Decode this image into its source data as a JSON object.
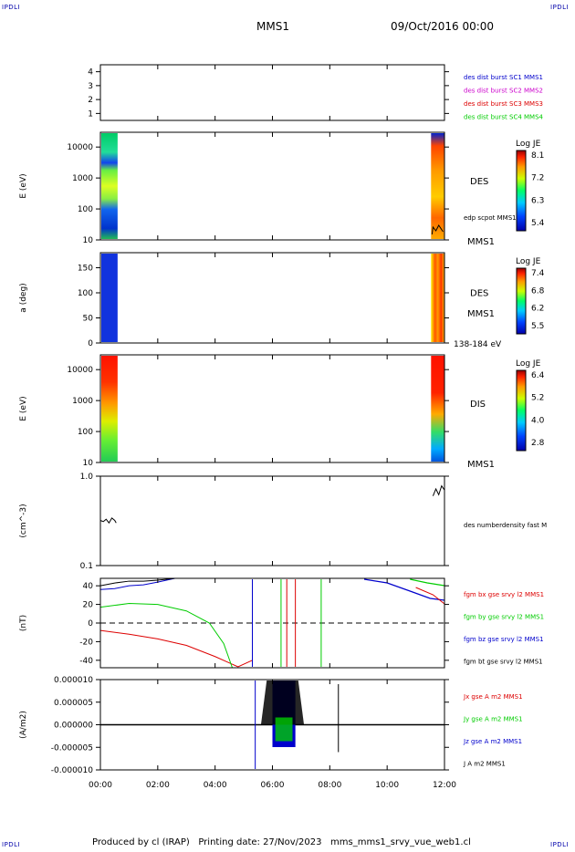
{
  "corner_tag": "IPDLI",
  "header": {
    "title": "MMS1",
    "datetime": "09/Oct/2016 00:00"
  },
  "footer": "Produced by cl (IRAP)   Printing date: 27/Nov/2023   mms_mms1_srvy_vue_web1.cl",
  "colors": {
    "black": "#000000",
    "mms1": "#0000cc",
    "mms2": "#cc00cc",
    "mms3": "#dd0000",
    "mms4": "#00cc00"
  },
  "chart_data": [
    {
      "type": "line",
      "panel": "spacecraft-availability",
      "ylim": [
        0.5,
        4.5
      ],
      "yticks": [
        "1",
        "2",
        "3",
        "4"
      ],
      "legend": [
        "des dist burst SC1 MMS1",
        "des dist burst SC2 MMS2",
        "des dist burst SC3 MMS3",
        "des dist burst SC4 MMS4"
      ]
    },
    {
      "type": "heatmap",
      "panel": "electron-energy-spectrogram",
      "ylabel": "E (eV)",
      "yscale": "log",
      "ylim": [
        10,
        30000
      ],
      "yticks": [
        "10",
        "100",
        "1000",
        "10000"
      ],
      "label": "DES",
      "overlay_label": "edp scpot MMS1",
      "sc_label": "MMS1",
      "colorbar": {
        "title": "Log JE",
        "ticks": [
          "8.1",
          "7.2",
          "6.3",
          "5.4"
        ]
      },
      "data_intervals": [
        [
          0.0,
          0.6
        ],
        [
          11.5,
          12.0
        ]
      ]
    },
    {
      "type": "heatmap",
      "panel": "electron-pitch-angle",
      "ylabel": "a (deg)",
      "ylim": [
        0,
        180
      ],
      "yticks": [
        "0",
        "50",
        "100",
        "150"
      ],
      "label": "DES",
      "sc_label": "MMS1",
      "energy_range": "138-184 eV",
      "colorbar": {
        "title": "Log JE",
        "ticks": [
          "7.4",
          "6.8",
          "6.2",
          "5.5"
        ]
      },
      "data_intervals": [
        [
          0.0,
          0.6
        ],
        [
          11.5,
          12.0
        ]
      ]
    },
    {
      "type": "heatmap",
      "panel": "ion-energy-spectrogram",
      "ylabel": "E (eV)",
      "yscale": "log",
      "ylim": [
        10,
        30000
      ],
      "yticks": [
        "10",
        "100",
        "1000",
        "10000"
      ],
      "label": "DIS",
      "sc_label": "MMS1",
      "colorbar": {
        "title": "Log JE",
        "ticks": [
          "6.4",
          "5.2",
          "4.0",
          "2.8"
        ]
      },
      "data_intervals": [
        [
          0.0,
          0.6
        ],
        [
          11.5,
          12.0
        ]
      ]
    },
    {
      "type": "line",
      "panel": "electron-density",
      "ylabel": "(cm^-3)",
      "yscale": "log",
      "ylim": [
        0.1,
        1.0
      ],
      "yticks": [
        "0.1",
        "1.0"
      ],
      "legend": [
        "des numberdensity fast M"
      ],
      "series": [
        {
          "name": "des numberdensity fast M",
          "x": [
            0.0,
            0.1,
            0.2,
            0.3,
            0.4,
            0.5,
            0.55
          ],
          "values": [
            0.32,
            0.31,
            0.33,
            0.3,
            0.34,
            0.32,
            0.3
          ]
        },
        {
          "name": "des numberdensity fast M",
          "x": [
            11.6,
            11.7,
            11.8,
            11.9,
            12.0
          ],
          "values": [
            0.6,
            0.72,
            0.62,
            0.78,
            0.7
          ]
        }
      ]
    },
    {
      "type": "line",
      "panel": "magnetic-field",
      "ylabel": "(nT)",
      "ylim": [
        -48,
        48
      ],
      "yticks": [
        "-40",
        "-20",
        "0",
        "20",
        "40"
      ],
      "legend": [
        "fgm bx gse srvy l2 MMS1",
        "fgm by gse srvy l2 MMS1",
        "fgm bz gse srvy l2 MMS1",
        "fgm bt gse srvy l2 MMS1"
      ],
      "series": [
        {
          "name": "fgm bx gse srvy l2 MMS1",
          "x": [
            0.0,
            1.0,
            2.0,
            3.0,
            4.0,
            4.8,
            5.3
          ],
          "values": [
            -8,
            -12,
            -17,
            -24,
            -36,
            -47,
            -40
          ]
        },
        {
          "name": "fgm by gse srvy l2 MMS1",
          "x": [
            0.0,
            1.0,
            2.0,
            3.0,
            3.8,
            4.3,
            4.6
          ],
          "values": [
            17,
            21,
            20,
            13,
            0,
            -22,
            -48
          ]
        },
        {
          "name": "fgm bz gse srvy l2 MMS1",
          "x": [
            0.0,
            0.5,
            1.0,
            1.5,
            2.0,
            2.6
          ],
          "values": [
            36,
            37,
            40,
            41,
            44,
            48
          ]
        },
        {
          "name": "fgm bt gse srvy l2 MMS1",
          "x": [
            0.0,
            0.5,
            1.0,
            1.5,
            2.0,
            2.6
          ],
          "values": [
            40,
            43,
            45,
            45,
            46,
            48
          ]
        }
      ]
    },
    {
      "type": "line",
      "panel": "current-density",
      "ylabel": "(A/m2)",
      "ylim": [
        -1e-05,
        1e-05
      ],
      "yticks": [
        "-0.000010",
        "-0.000005",
        "0.000000",
        "0.000005",
        "0.000010"
      ],
      "legend": [
        "Jx gse A m2 MMS1",
        "Jy gse A m2 MMS1",
        "Jz gse A m2 MMS1",
        "J A m2 MMS1"
      ]
    }
  ],
  "x_axis": {
    "ticks": [
      "00:00",
      "02:00",
      "04:00",
      "06:00",
      "08:00",
      "10:00",
      "12:00"
    ],
    "range_hours": [
      0,
      12
    ]
  }
}
